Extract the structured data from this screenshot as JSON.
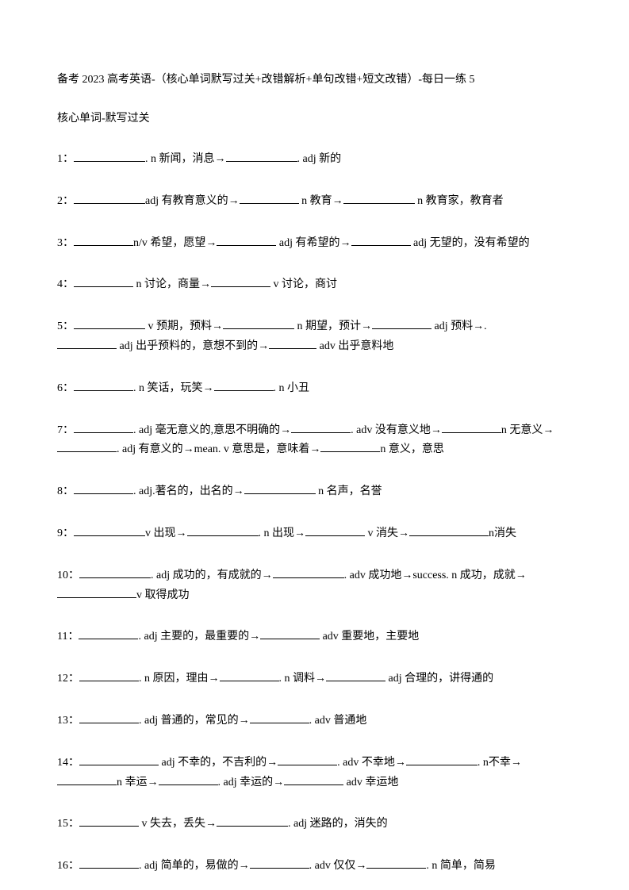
{
  "title": "备考 2023 高考英语-（核心单词默写过关+改错解析+单句改错+短文改错）-每日一练 5",
  "subtitle": "核心单词-默写过关",
  "questions": {
    "q1": {
      "num": "1：",
      "p1": ". n 新闻，消息→",
      "p2": ". adj 新的"
    },
    "q2": {
      "num": "2：",
      "p1": "adj 有教育意义的→",
      "p2": " n 教育→",
      "p3": " n 教育家，教育者"
    },
    "q3": {
      "num": "3：",
      "p1": "n/v 希望，愿望→",
      "p2": " adj 有希望的→",
      "p3": " adj 无望的，没有希望的"
    },
    "q4": {
      "num": "4：",
      "p1": " n 讨论，商量→",
      "p2": " v 讨论，商讨"
    },
    "q5": {
      "num": "5：",
      "p1": " v 预期，预料→",
      "p2": " n 期望，预计→",
      "p3": " adj 预料→.",
      "p4": " adj 出乎预料的，意想不到的→",
      "p5": " adv 出乎意料地"
    },
    "q6": {
      "num": "6：",
      "p1": ". n 笑话，玩笑→",
      "p2": ". n 小丑"
    },
    "q7": {
      "num": "7：",
      "p1": ". adj 毫无意义的,意思不明确的→",
      "p2": ". adv 没有意义地→",
      "p3": "n 无意义→",
      "p4": ". adj 有意义的→mean. v 意思是，意味着→",
      "p5": "n 意义，意思"
    },
    "q8": {
      "num": "8：",
      "p1": ". adj.著名的，出名的→",
      "p2": " n 名声，名誉"
    },
    "q9": {
      "num": "9：",
      "p1": "v 出现→",
      "p2": ". n 出现→",
      "p3": " v 消失→",
      "p4": "n消失"
    },
    "q10": {
      "num": "10：",
      "p1": ". adj 成功的，有成就的→",
      "p2": ". adv 成功地→success. n 成功，成就→",
      "p3": "v 取得成功"
    },
    "q11": {
      "num": "11：",
      "p1": ". adj 主要的，最重要的→",
      "p2": " adv 重要地，主要地"
    },
    "q12": {
      "num": "12：",
      "p1": ". n 原因，理由→",
      "p2": ". n 调料→",
      "p3": " adj 合理的，讲得通的"
    },
    "q13": {
      "num": "13：",
      "p1": ". adj 普通的，常见的→",
      "p2": ". adv 普通地"
    },
    "q14": {
      "num": "14：",
      "p1": " adj 不幸的，不吉利的→",
      "p2": ". adv 不幸地→",
      "p3": ". n不幸→",
      "p4": "n 幸运→",
      "p5": ". adj 幸运的→",
      "p6": " adv 幸运地"
    },
    "q15": {
      "num": "15：",
      "p1": " v 失去，丢失→",
      "p2": ". adj 迷路的，消失的"
    },
    "q16": {
      "num": "16：",
      "p1": ". adj 简单的，易做的→",
      "p2": ". adv 仅仅→",
      "p3": ". n 简单，简易"
    }
  }
}
